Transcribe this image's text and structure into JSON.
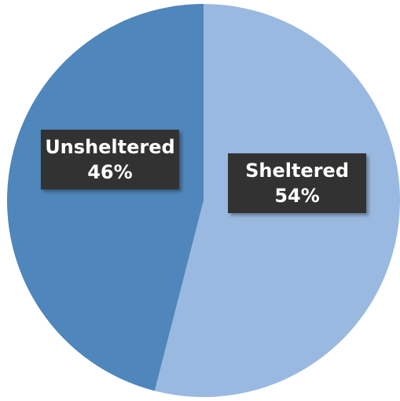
{
  "chart_data": {
    "type": "pie",
    "categories": [
      "Sheltered",
      "Unsheltered"
    ],
    "values": [
      54,
      46
    ],
    "value_labels": [
      "54%",
      "46%"
    ],
    "colors": [
      "#9ab9e0",
      "#4f86bb"
    ]
  }
}
